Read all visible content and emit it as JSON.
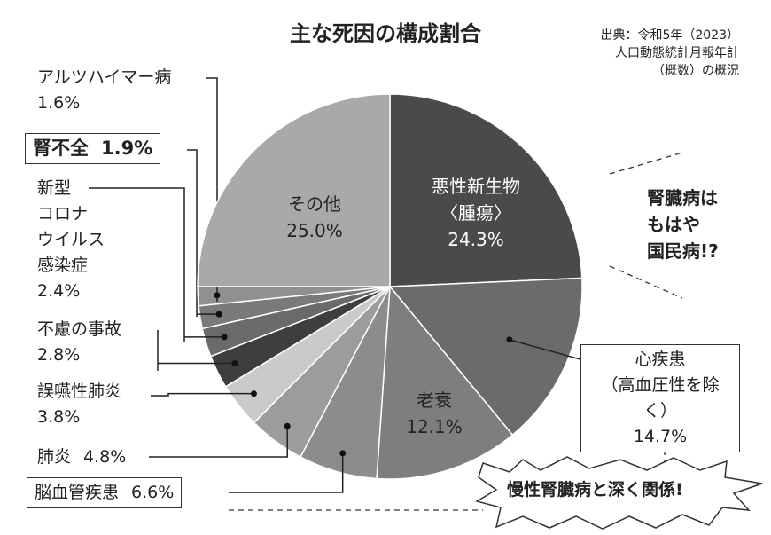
{
  "chart_data": {
    "type": "pie",
    "title": "主な死因の構成割合",
    "source": "出典：令和5年（2023）\n人口動態統計月報年計\n（概数）の概況",
    "annotations": [
      "腎臓病は\nもはや\n国民病!?",
      "慢性腎臓病と深く関係!"
    ],
    "categories": [
      "悪性新生物\n〈腫瘍〉",
      "心疾患\n（高血圧性を除く）",
      "老衰",
      "脳血管疾患",
      "肺炎",
      "誤嚥性肺炎",
      "不慮の事故",
      "新型\nコロナ\nウイルス\n感染症",
      "腎不全",
      "アルツハイマー病",
      "その他"
    ],
    "values": [
      24.3,
      14.7,
      12.1,
      6.6,
      4.8,
      3.8,
      2.8,
      2.4,
      1.9,
      1.6,
      25.0
    ],
    "value_labels": [
      "24.3%",
      "14.7%",
      "12.1%",
      "6.6%",
      "4.8%",
      "3.8%",
      "2.8%",
      "2.4%",
      "1.9%",
      "1.6%",
      "25.0%"
    ],
    "colors": [
      "#4a4a4a",
      "#6b6b6b",
      "#7e7e7e",
      "#8c8c8c",
      "#9c9c9c",
      "#cacaca",
      "#3e3e3e",
      "#6a6a6a",
      "#7a7a7a",
      "#909090",
      "#a9a9a9"
    ]
  }
}
